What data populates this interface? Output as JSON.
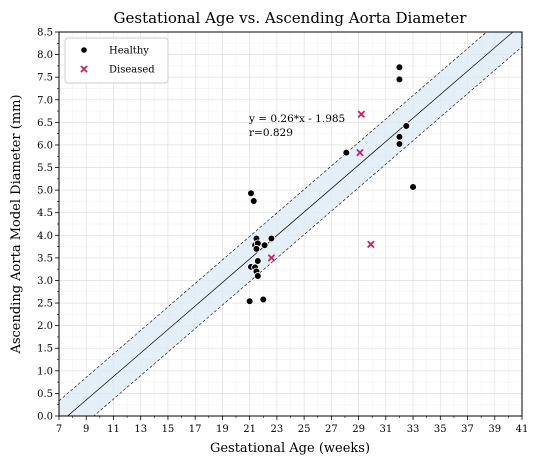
{
  "chart_data": {
    "type": "scatter",
    "title": "Gestational Age vs. Ascending Aorta Diameter",
    "xlabel": "Gestational Age (weeks)",
    "ylabel": "Ascending Aorta Model Diameter (mm)",
    "xlim": [
      7,
      41
    ],
    "ylim": [
      0,
      8.5
    ],
    "xticks": [
      "7",
      "9",
      "11",
      "13",
      "15",
      "17",
      "19",
      "21",
      "23",
      "25",
      "27",
      "29",
      "31",
      "33",
      "35",
      "37",
      "39",
      "41"
    ],
    "yticks": [
      "0.0",
      "0.5",
      "1.0",
      "1.5",
      "2.0",
      "2.5",
      "3.0",
      "3.5",
      "4.0",
      "4.5",
      "5.0",
      "5.5",
      "6.0",
      "6.5",
      "7.0",
      "7.5",
      "8.0",
      "8.5"
    ],
    "grid": true,
    "legend_position": "top-left",
    "fit": {
      "slope": 0.26,
      "intercept": -1.985,
      "band_halfwidth": 0.5,
      "band_color": "#dce9f5"
    },
    "annotation": [
      "y = 0.26*x - 1.985",
      "r=0.829"
    ],
    "series": [
      {
        "name": "Healthy",
        "marker": "circle",
        "color": "#000000",
        "points": [
          [
            21.1,
            4.93
          ],
          [
            21.3,
            4.76
          ],
          [
            21.5,
            3.93
          ],
          [
            21.4,
            3.78
          ],
          [
            21.6,
            3.82
          ],
          [
            22.1,
            3.78
          ],
          [
            22.6,
            3.93
          ],
          [
            21.5,
            3.7
          ],
          [
            21.6,
            3.43
          ],
          [
            21.1,
            3.3
          ],
          [
            21.4,
            3.29
          ],
          [
            21.5,
            3.2
          ],
          [
            21.6,
            3.1
          ],
          [
            21.0,
            2.54
          ],
          [
            22.0,
            2.58
          ],
          [
            28.1,
            5.83
          ],
          [
            32.0,
            7.72
          ],
          [
            32.0,
            7.45
          ],
          [
            32.5,
            6.42
          ],
          [
            32.0,
            6.18
          ],
          [
            32.0,
            6.02
          ],
          [
            33.0,
            5.07
          ]
        ]
      },
      {
        "name": "Diseased",
        "marker": "x",
        "color": "#c2226a",
        "points": [
          [
            29.2,
            6.68
          ],
          [
            29.1,
            5.83
          ],
          [
            22.6,
            3.5
          ],
          [
            29.9,
            3.8
          ]
        ]
      }
    ]
  }
}
